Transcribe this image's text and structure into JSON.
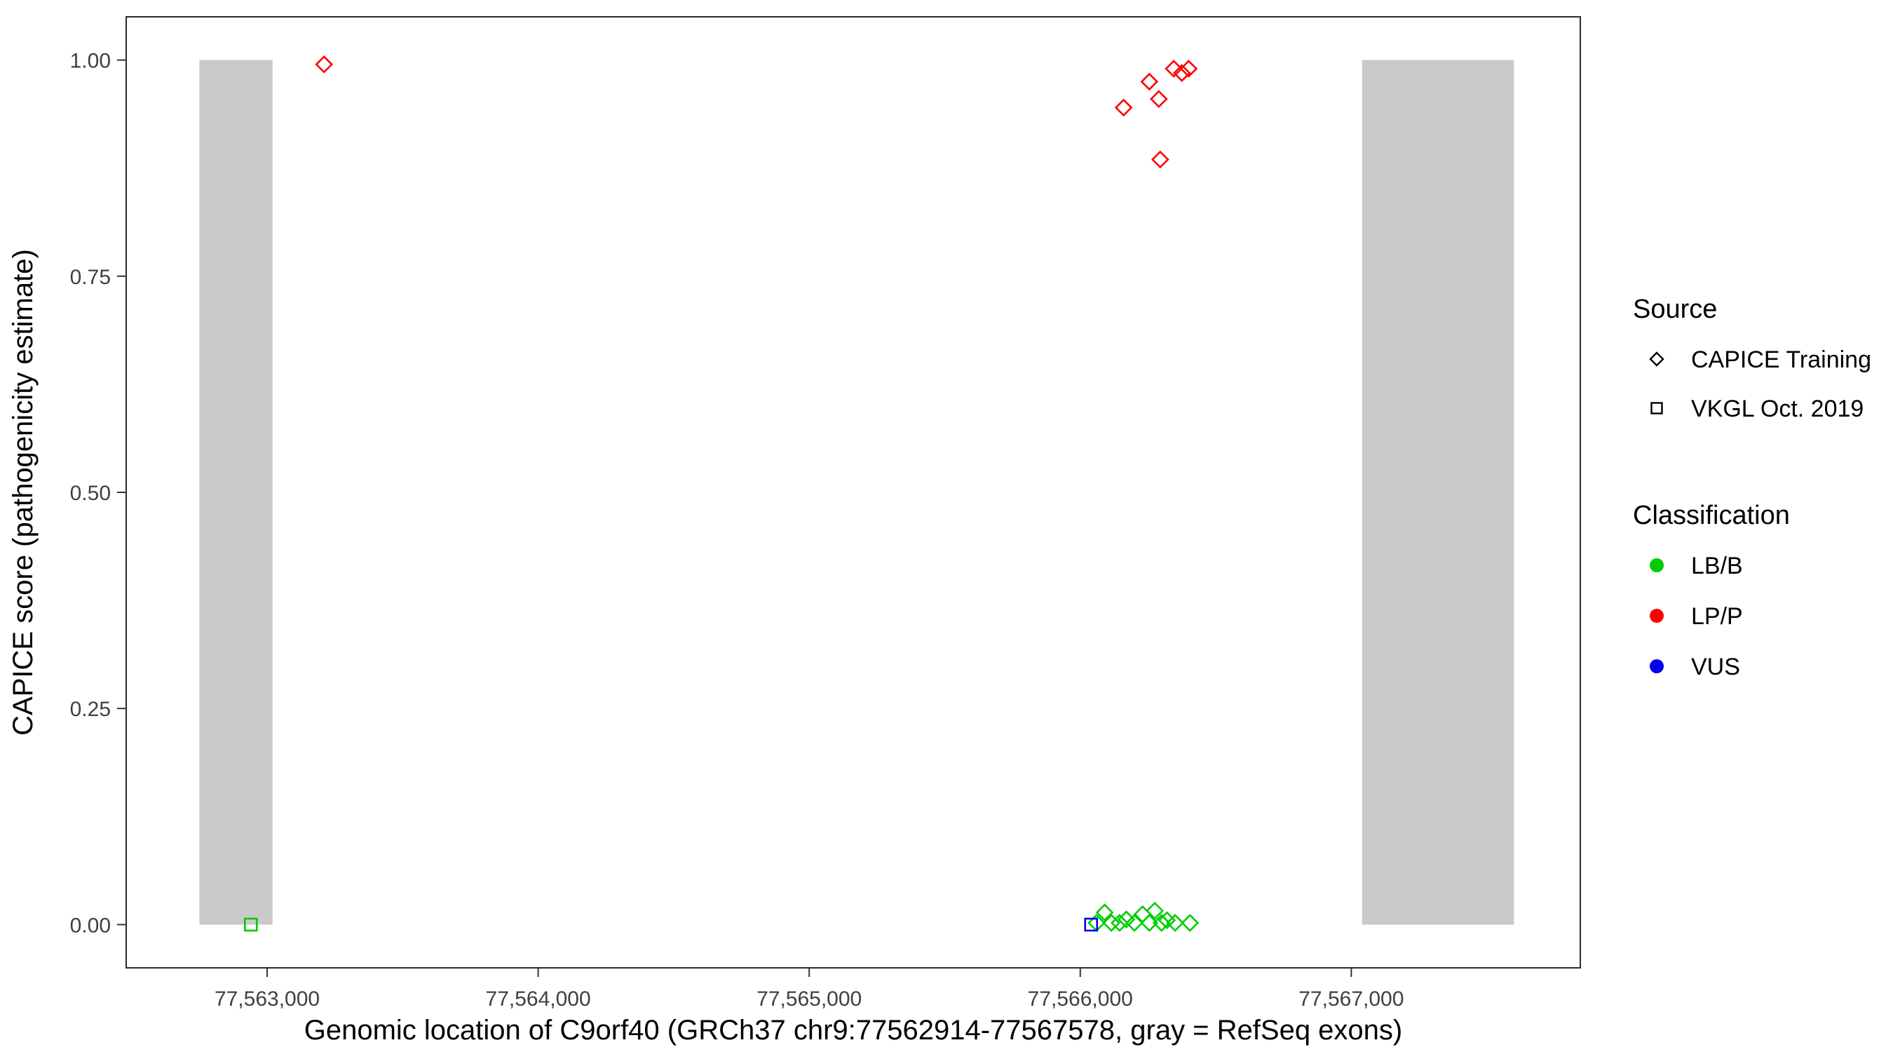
{
  "colors": {
    "exon_gray": "#C9C9C9",
    "lb_b_green": "#00CD00",
    "lp_p_red": "#FF0000",
    "vus_blue": "#0000EE",
    "axis_text": "#404040",
    "panel_border": "#2A2A2A",
    "legend_glyph": "#000000"
  },
  "chart_data": {
    "type": "scatter",
    "title": "",
    "xlabel": "Genomic location of C9orf40 (GRCh37 chr9:77562914-77567578, gray = RefSeq exons)",
    "ylabel": "CAPICE score (pathogenicity estimate)",
    "xlim": [
      77562480,
      77567845
    ],
    "ylim": [
      -0.05,
      1.05
    ],
    "grid": false,
    "x_ticks": [
      {
        "value": 77563000,
        "label": "77,563,000"
      },
      {
        "value": 77564000,
        "label": "77,564,000"
      },
      {
        "value": 77565000,
        "label": "77,565,000"
      },
      {
        "value": 77566000,
        "label": "77,566,000"
      },
      {
        "value": 77567000,
        "label": "77,567,000"
      }
    ],
    "y_ticks": [
      {
        "value": 0.0,
        "label": "0.00"
      },
      {
        "value": 0.25,
        "label": "0.25"
      },
      {
        "value": 0.5,
        "label": "0.50"
      },
      {
        "value": 0.75,
        "label": "0.75"
      },
      {
        "value": 1.0,
        "label": "1.00"
      }
    ],
    "exons_gray_rects": [
      {
        "x_start": 77562750,
        "x_end": 77563020,
        "y_min": 0.0,
        "y_max": 1.0
      },
      {
        "x_start": 77567040,
        "x_end": 77567600,
        "y_min": 0.0,
        "y_max": 1.0
      }
    ],
    "series": [
      {
        "name": "CAPICE Training / LP-P",
        "source": "CAPICE Training",
        "classification": "LP/P",
        "shape": "diamond",
        "color": "#FF0000",
        "points": [
          {
            "x": 77563210,
            "y": 0.995
          },
          {
            "x": 77566160,
            "y": 0.945
          },
          {
            "x": 77566255,
            "y": 0.975
          },
          {
            "x": 77566290,
            "y": 0.955
          },
          {
            "x": 77566295,
            "y": 0.885
          },
          {
            "x": 77566345,
            "y": 0.99
          },
          {
            "x": 77566375,
            "y": 0.985
          },
          {
            "x": 77566400,
            "y": 0.99
          }
        ]
      },
      {
        "name": "CAPICE Training / LB-B",
        "source": "CAPICE Training",
        "classification": "LB/B",
        "shape": "diamond",
        "color": "#00CD00",
        "points": [
          {
            "x": 77566060,
            "y": 0.002
          },
          {
            "x": 77566090,
            "y": 0.014
          },
          {
            "x": 77566115,
            "y": 0.002
          },
          {
            "x": 77566145,
            "y": 0.002
          },
          {
            "x": 77566170,
            "y": 0.006
          },
          {
            "x": 77566200,
            "y": 0.002
          },
          {
            "x": 77566230,
            "y": 0.012
          },
          {
            "x": 77566255,
            "y": 0.002
          },
          {
            "x": 77566275,
            "y": 0.016
          },
          {
            "x": 77566300,
            "y": 0.002
          },
          {
            "x": 77566320,
            "y": 0.005
          },
          {
            "x": 77566350,
            "y": 0.002
          },
          {
            "x": 77566405,
            "y": 0.002
          }
        ]
      },
      {
        "name": "VKGL Oct. 2019 / LB-B",
        "source": "VKGL Oct. 2019",
        "classification": "LB/B",
        "shape": "square",
        "color": "#00CD00",
        "points": [
          {
            "x": 77562940,
            "y": 0.0
          }
        ]
      },
      {
        "name": "VKGL Oct. 2019 / VUS",
        "source": "VKGL Oct. 2019",
        "classification": "VUS",
        "shape": "square",
        "color": "#0000EE",
        "points": [
          {
            "x": 77566040,
            "y": 0.0
          }
        ]
      }
    ],
    "legend": {
      "position": "right",
      "source": {
        "title": "Source",
        "items": [
          {
            "label": "CAPICE Training",
            "shape": "diamond"
          },
          {
            "label": "VKGL Oct. 2019",
            "shape": "square"
          }
        ]
      },
      "classification": {
        "title": "Classification",
        "items": [
          {
            "label": "LB/B",
            "color": "#00CD00"
          },
          {
            "label": "LP/P",
            "color": "#FF0000"
          },
          {
            "label": "VUS",
            "color": "#0000EE"
          }
        ]
      }
    }
  }
}
